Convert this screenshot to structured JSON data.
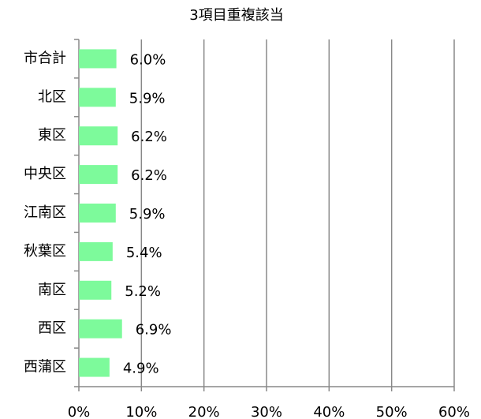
{
  "chart_data": {
    "type": "bar",
    "orientation": "horizontal",
    "title": "3項目重複該当",
    "categories": [
      "市合計",
      "北区",
      "東区",
      "中央区",
      "江南区",
      "秋葉区",
      "南区",
      "西区",
      "西蒲区"
    ],
    "values": [
      6.0,
      5.9,
      6.2,
      6.2,
      5.9,
      5.4,
      5.2,
      6.9,
      4.9
    ],
    "value_labels": [
      "6.0%",
      "5.9%",
      "6.2%",
      "6.2%",
      "5.9%",
      "5.4%",
      "5.2%",
      "6.9%",
      "4.9%"
    ],
    "color": "#7dfa9b",
    "xlim": [
      0,
      60
    ],
    "xticks": [
      {
        "value": 0,
        "label": "0%"
      },
      {
        "value": 10,
        "label": "10%"
      },
      {
        "value": 20,
        "label": "20%"
      },
      {
        "value": 30,
        "label": "30%"
      },
      {
        "value": 40,
        "label": "40%"
      },
      {
        "value": 50,
        "label": "50%"
      },
      {
        "value": 60,
        "label": "60%"
      }
    ],
    "grid": true
  }
}
